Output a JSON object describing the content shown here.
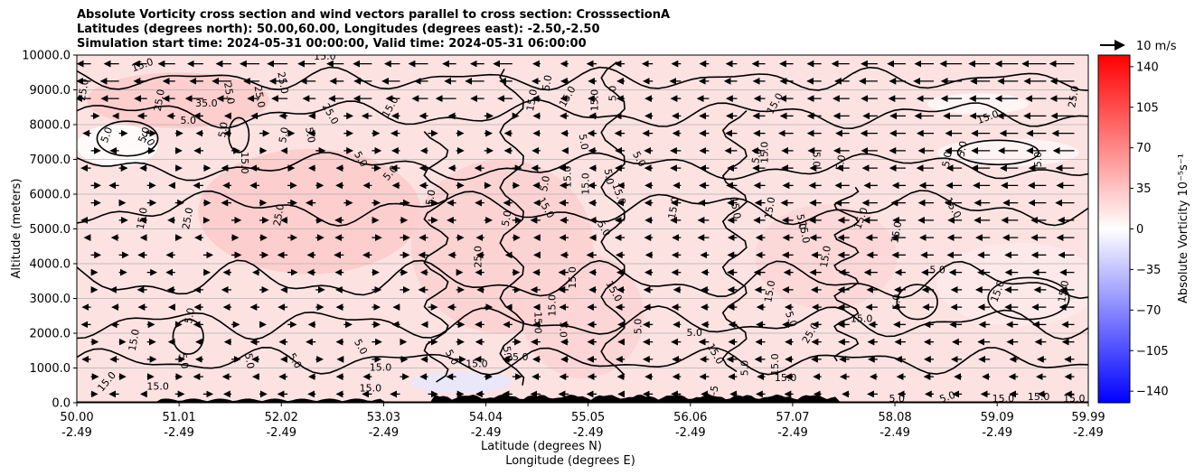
{
  "titles": [
    "Absolute Vorticity cross section and wind vectors parallel to cross section: CrosssectionA",
    "Latitudes (degrees north): 50.00,60.00, Longitudes (degrees east): -2.50,-2.50",
    "Simulation start time: 2024-05-31 00:00:00, Valid time: 2024-05-31 06:00:00"
  ],
  "chart_data": {
    "type": "heatmap",
    "ylabel": "Altitude (meters)",
    "xlabel_lines": [
      "Latitude (degrees N)",
      "Longitude (degrees E)"
    ],
    "ylim": [
      0,
      10000
    ],
    "y_ticks": [
      "0.0",
      "1000.0",
      "2000.0",
      "3000.0",
      "4000.0",
      "5000.0",
      "6000.0",
      "7000.0",
      "8000.0",
      "9000.0",
      "10000.0"
    ],
    "y_tick_values": [
      0,
      1000,
      2000,
      3000,
      4000,
      5000,
      6000,
      7000,
      8000,
      9000,
      10000
    ],
    "x_ticks": [
      {
        "lat": "50.00",
        "lon": "-2.49"
      },
      {
        "lat": "51.01",
        "lon": "-2.49"
      },
      {
        "lat": "52.02",
        "lon": "-2.49"
      },
      {
        "lat": "53.03",
        "lon": "-2.49"
      },
      {
        "lat": "54.04",
        "lon": "-2.49"
      },
      {
        "lat": "55.05",
        "lon": "-2.49"
      },
      {
        "lat": "56.06",
        "lon": "-2.49"
      },
      {
        "lat": "57.07",
        "lon": "-2.49"
      },
      {
        "lat": "58.08",
        "lon": "-2.49"
      },
      {
        "lat": "59.09",
        "lon": "-2.49"
      },
      {
        "lat": "59.99",
        "lon": "-2.49"
      }
    ],
    "xlim": [
      50.0,
      59.99
    ],
    "grid": "horizontal",
    "colorbar": {
      "label": "Absolute Vorticity 10⁻⁵s⁻¹",
      "range": [
        -150,
        150
      ],
      "ticks": [
        "140",
        "105",
        "70",
        "35",
        "0",
        "−35",
        "−70",
        "−105",
        "−140"
      ],
      "tick_values": [
        140,
        105,
        70,
        35,
        0,
        -35,
        -70,
        -105,
        -140
      ],
      "cmap": "bwr",
      "low_color": "#0000ff",
      "mid_color": "#ffffff",
      "high_color": "#ff0000"
    },
    "quiver_key": {
      "label": "10 m/s"
    },
    "contour_levels_labeled": [
      "5.0",
      "15.0",
      "25.0",
      "35.0",
      "-5.0"
    ],
    "contour_labels": [
      {
        "text": "15.0",
        "lat": 50.65,
        "alt": 9700,
        "rot": -20
      },
      {
        "text": "15.0",
        "lat": 52.45,
        "alt": 9950,
        "rot": 0
      },
      {
        "text": "25.0",
        "lat": 50.07,
        "alt": 9000,
        "rot": -80
      },
      {
        "text": "25.0",
        "lat": 50.82,
        "alt": 8700,
        "rot": -80
      },
      {
        "text": "35.0",
        "lat": 51.28,
        "alt": 8600,
        "rot": 0
      },
      {
        "text": "25.0",
        "lat": 51.5,
        "alt": 8900,
        "rot": 80
      },
      {
        "text": "25.0",
        "lat": 51.8,
        "alt": 8800,
        "rot": 80
      },
      {
        "text": "25.0",
        "lat": 52.03,
        "alt": 9200,
        "rot": 80
      },
      {
        "text": "5.0",
        "lat": 51.1,
        "alt": 8100,
        "rot": 0
      },
      {
        "text": "5.0",
        "lat": 51.45,
        "alt": 7850,
        "rot": -80
      },
      {
        "text": "5.0",
        "lat": 50.3,
        "alt": 7700,
        "rot": -70
      },
      {
        "text": "5.0",
        "lat": 50.67,
        "alt": 7700,
        "rot": -70
      },
      {
        "text": "5.0",
        "lat": 52.3,
        "alt": 7700,
        "rot": 80
      },
      {
        "text": "5.0",
        "lat": 52.05,
        "alt": 7700,
        "rot": -80
      },
      {
        "text": "25.0",
        "lat": 52.5,
        "alt": 8300,
        "rot": 60
      },
      {
        "text": "15.0",
        "lat": 53.1,
        "alt": 8500,
        "rot": -60
      },
      {
        "text": "5.0",
        "lat": 52.8,
        "alt": 7000,
        "rot": 60
      },
      {
        "text": "5.0",
        "lat": 53.1,
        "alt": 6600,
        "rot": -50
      },
      {
        "text": "15.0",
        "lat": 51.65,
        "alt": 6900,
        "rot": 90
      },
      {
        "text": "5.0",
        "lat": 50.7,
        "alt": 7600,
        "rot": 60
      },
      {
        "text": "15.0",
        "lat": 50.65,
        "alt": 5300,
        "rot": -80
      },
      {
        "text": "25.0",
        "lat": 51.1,
        "alt": 5300,
        "rot": -80
      },
      {
        "text": "25.0",
        "lat": 52.0,
        "alt": 5400,
        "rot": -80
      },
      {
        "text": "5.0",
        "lat": 53.5,
        "alt": 5900,
        "rot": -80
      },
      {
        "text": "5.0",
        "lat": 54.25,
        "alt": 5300,
        "rot": -80
      },
      {
        "text": "25.0",
        "lat": 53.97,
        "alt": 4200,
        "rot": -90
      },
      {
        "text": "15.0",
        "lat": 54.5,
        "alt": 8700,
        "rot": -80
      },
      {
        "text": "5.0",
        "lat": 54.65,
        "alt": 9200,
        "rot": -80
      },
      {
        "text": "15.0",
        "lat": 54.85,
        "alt": 8800,
        "rot": -60
      },
      {
        "text": "15.0",
        "lat": 55.12,
        "alt": 8700,
        "rot": -90
      },
      {
        "text": "5.0",
        "lat": 55.3,
        "alt": 8900,
        "rot": -90
      },
      {
        "text": "5.0",
        "lat": 55.0,
        "alt": 7500,
        "rot": 80
      },
      {
        "text": "15.0",
        "lat": 54.85,
        "alt": 6500,
        "rot": -90
      },
      {
        "text": "5.0",
        "lat": 54.63,
        "alt": 6300,
        "rot": -80
      },
      {
        "text": "15.0",
        "lat": 54.63,
        "alt": 5600,
        "rot": 60
      },
      {
        "text": "15.0",
        "lat": 55.03,
        "alt": 6300,
        "rot": -90
      },
      {
        "text": "5.0",
        "lat": 55.25,
        "alt": 6500,
        "rot": 80
      },
      {
        "text": "15.0",
        "lat": 55.35,
        "alt": 6000,
        "rot": 70
      },
      {
        "text": "5.0",
        "lat": 55.55,
        "alt": 7000,
        "rot": 60
      },
      {
        "text": "5.0",
        "lat": 55.2,
        "alt": 5000,
        "rot": 60
      },
      {
        "text": "15.0",
        "lat": 55.9,
        "alt": 5600,
        "rot": -80
      },
      {
        "text": "15.0",
        "lat": 54.9,
        "alt": 3600,
        "rot": -90
      },
      {
        "text": "15.0",
        "lat": 55.3,
        "alt": 3200,
        "rot": 60
      },
      {
        "text": "15.0",
        "lat": 54.7,
        "alt": 2800,
        "rot": -90
      },
      {
        "text": "15.0",
        "lat": 54.55,
        "alt": 2300,
        "rot": 90
      },
      {
        "text": "5.0",
        "lat": 54.8,
        "alt": 2100,
        "rot": 90
      },
      {
        "text": "5.0",
        "lat": 55.55,
        "alt": 2200,
        "rot": -90
      },
      {
        "text": "5.0",
        "lat": 56.1,
        "alt": 2000,
        "rot": 0
      },
      {
        "text": "15.0",
        "lat": 56.5,
        "alt": 5600,
        "rot": 80
      },
      {
        "text": "15.0",
        "lat": 56.85,
        "alt": 5600,
        "rot": -80
      },
      {
        "text": "5.0",
        "lat": 57.15,
        "alt": 5200,
        "rot": 80
      },
      {
        "text": "15.0",
        "lat": 57.18,
        "alt": 4900,
        "rot": 80
      },
      {
        "text": "15.0",
        "lat": 57.4,
        "alt": 4200,
        "rot": -80
      },
      {
        "text": "15.0",
        "lat": 57.75,
        "alt": 5300,
        "rot": -70
      },
      {
        "text": "15.0",
        "lat": 56.9,
        "alt": 8600,
        "rot": -60
      },
      {
        "text": "15.0",
        "lat": 56.8,
        "alt": 7200,
        "rot": -90
      },
      {
        "text": "5.0",
        "lat": 56.72,
        "alt": 7100,
        "rot": -80
      },
      {
        "text": "5.0",
        "lat": 57.3,
        "alt": 7000,
        "rot": 90
      },
      {
        "text": "5.0",
        "lat": 57.55,
        "alt": 6900,
        "rot": -80
      },
      {
        "text": "15.0",
        "lat": 56.85,
        "alt": 3200,
        "rot": -80
      },
      {
        "text": "15.0",
        "lat": 57.75,
        "alt": 2400,
        "rot": 0
      },
      {
        "text": "25.0",
        "lat": 57.25,
        "alt": 2000,
        "rot": -60
      },
      {
        "text": "5.0",
        "lat": 57.05,
        "alt": 2400,
        "rot": 70
      },
      {
        "text": "15.0",
        "lat": 58.1,
        "alt": 4900,
        "rot": -80
      },
      {
        "text": "5.0",
        "lat": 58.5,
        "alt": 3800,
        "rot": 0
      },
      {
        "text": "5.0",
        "lat": 58.1,
        "alt": 2900,
        "rot": -90
      },
      {
        "text": "15.0",
        "lat": 58.65,
        "alt": 5600,
        "rot": 60
      },
      {
        "text": "5.0",
        "lat": 58.6,
        "alt": 7000,
        "rot": -80
      },
      {
        "text": "5.0",
        "lat": 58.75,
        "alt": 7300,
        "rot": -80
      },
      {
        "text": "15.0",
        "lat": 59.0,
        "alt": 8200,
        "rot": -20
      },
      {
        "text": "5.0",
        "lat": 59.5,
        "alt": 7000,
        "rot": -90
      },
      {
        "text": "25.0",
        "lat": 59.85,
        "alt": 8800,
        "rot": -80
      },
      {
        "text": "15.0",
        "lat": 59.1,
        "alt": 3200,
        "rot": -70
      },
      {
        "text": "15.0",
        "lat": 59.75,
        "alt": 3200,
        "rot": -80
      },
      {
        "text": "15.0",
        "lat": 50.57,
        "alt": 1800,
        "rot": -80
      },
      {
        "text": "5.0",
        "lat": 51.12,
        "alt": 2500,
        "rot": -80
      },
      {
        "text": "5.0",
        "lat": 51.05,
        "alt": 1200,
        "rot": 80
      },
      {
        "text": "5.0",
        "lat": 51.7,
        "alt": 1200,
        "rot": 80
      },
      {
        "text": "5.0",
        "lat": 52.15,
        "alt": 1200,
        "rot": 60
      },
      {
        "text": "5.0",
        "lat": 52.8,
        "alt": 1600,
        "rot": 60
      },
      {
        "text": "15.0",
        "lat": 53.0,
        "alt": 1000,
        "rot": 0
      },
      {
        "text": "15.0",
        "lat": 52.9,
        "alt": 400,
        "rot": 0
      },
      {
        "text": "5.0",
        "lat": 54.25,
        "alt": 1400,
        "rot": 80
      },
      {
        "text": "25.0",
        "lat": 54.35,
        "alt": 1300,
        "rot": 0
      },
      {
        "text": "5.0",
        "lat": 53.7,
        "alt": 1300,
        "rot": 60
      },
      {
        "text": "15.0",
        "lat": 53.95,
        "alt": 1100,
        "rot": 0
      },
      {
        "text": "15.0",
        "lat": 56.3,
        "alt": 1400,
        "rot": 60
      },
      {
        "text": "5.0",
        "lat": 56.6,
        "alt": 1000,
        "rot": -90
      },
      {
        "text": "15.0",
        "lat": 56.9,
        "alt": 1100,
        "rot": -90
      },
      {
        "text": "15.0",
        "lat": 57.0,
        "alt": 700,
        "rot": 0
      },
      {
        "text": "15.0",
        "lat": 50.8,
        "alt": 450,
        "rot": 0
      },
      {
        "text": "15.0",
        "lat": 50.3,
        "alt": 600,
        "rot": -50
      },
      {
        "text": "-5",
        "lat": 56.3,
        "alt": 350,
        "rot": -80
      },
      {
        "text": "5.0",
        "lat": 58.1,
        "alt": 100,
        "rot": 0
      },
      {
        "text": "5.0",
        "lat": 58.6,
        "alt": 150,
        "rot": -20
      },
      {
        "text": "15.0",
        "lat": 59.15,
        "alt": 100,
        "rot": 0
      },
      {
        "text": "15.0",
        "lat": 59.5,
        "alt": 150,
        "rot": 0
      },
      {
        "text": "15.0",
        "lat": 59.85,
        "alt": 100,
        "rot": 0
      }
    ]
  }
}
